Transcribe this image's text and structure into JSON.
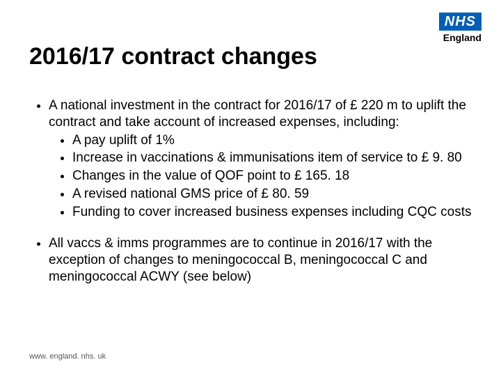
{
  "logo": {
    "text": "NHS",
    "subtext": "England",
    "bg": "#005eb8",
    "fg": "#ffffff"
  },
  "title": "2016/17 contract changes",
  "bullets": {
    "b1": "A national investment in the contract for 2016/17 of £ 220 m to uplift the contract and take account of increased expenses, including:",
    "b1a": "A pay uplift of 1%",
    "b1b": "Increase in vaccinations & immunisations item of service to £ 9. 80",
    "b1c": "Changes in the value of QOF point to £ 165. 18",
    "b1d": "A revised national GMS price of £ 80. 59",
    "b1e": "Funding to cover increased business expenses including CQC costs",
    "b2": "All vaccs & imms programmes are to continue in 2016/17 with the exception of changes to meningococcal B, meningococcal C and meningococcal ACWY (see below)"
  },
  "footer": "www. england. nhs. uk",
  "typography": {
    "title_fontsize": 34,
    "body_fontsize": 19,
    "footer_fontsize": 11
  },
  "colors": {
    "background": "#ffffff",
    "text": "#000000",
    "footer": "#555555"
  }
}
